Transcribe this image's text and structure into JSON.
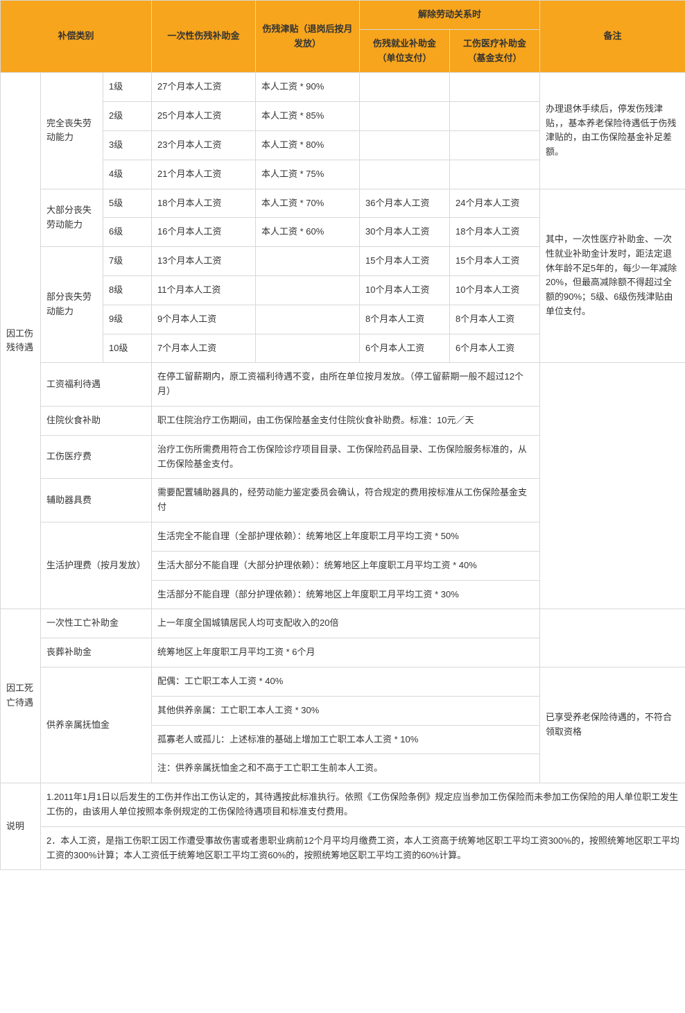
{
  "header": {
    "category": "补偿类别",
    "lump_sum": "一次性伤残补助金",
    "allowance": "伤残津贴（退岗后按月发放）",
    "termination": "解除劳动关系时",
    "emp_subsidy": "伤残就业补助金（单位支付）",
    "med_subsidy": "工伤医疗补助金（基金支付）",
    "remark": "备注"
  },
  "section1": {
    "title": "因工伤残待遇",
    "group1": {
      "label": "完全丧失劳动能力",
      "rows": [
        {
          "lv": "1级",
          "sum": "27个月本人工资",
          "allow": "本人工资 * 90%"
        },
        {
          "lv": "2级",
          "sum": "25个月本人工资",
          "allow": "本人工资 * 85%"
        },
        {
          "lv": "3级",
          "sum": "23个月本人工资",
          "allow": "本人工资 * 80%"
        },
        {
          "lv": "4级",
          "sum": "21个月本人工资",
          "allow": "本人工资 * 75%"
        }
      ],
      "remark": "办理退休手续后，停发伤残津贴，，基本养老保险待遇低于伤残津贴的，由工伤保险基金补足差额。"
    },
    "group2": {
      "label": "大部分丧失劳动能力",
      "rows": [
        {
          "lv": "5级",
          "sum": "18个月本人工资",
          "allow": "本人工资 * 70%",
          "emp": "36个月本人工资",
          "med": "24个月本人工资"
        },
        {
          "lv": "6级",
          "sum": "16个月本人工资",
          "allow": "本人工资 * 60%",
          "emp": "30个月本人工资",
          "med": "18个月本人工资"
        }
      ]
    },
    "group3": {
      "label": "部分丧失劳动能力",
      "rows": [
        {
          "lv": "7级",
          "sum": "13个月本人工资",
          "allow": "",
          "emp": "15个月本人工资",
          "med": "15个月本人工资"
        },
        {
          "lv": "8级",
          "sum": "11个月本人工资",
          "allow": "",
          "emp": "10个月本人工资",
          "med": "10个月本人工资"
        },
        {
          "lv": "9级",
          "sum": "9个月本人工资",
          "allow": "",
          "emp": "8个月本人工资",
          "med": "8个月本人工资"
        },
        {
          "lv": "10级",
          "sum": "7个月本人工资",
          "allow": "",
          "emp": "6个月本人工资",
          "med": "6个月本人工资"
        }
      ],
      "remark": "其中，一次性医疗补助金、一次性就业补助金计发时，距法定退休年龄不足5年的，每少一年减除20%，但最高减除额不得超过全额的90%；5级、6级伤残津贴由单位支付。"
    },
    "items": [
      {
        "label": "工资福利待遇",
        "text": "在停工留薪期内，原工资福利待遇不变，由所在单位按月发放。（停工留薪期一般不超过12个月）"
      },
      {
        "label": "住院伙食补助",
        "text": "职工住院治疗工伤期间，由工伤保险基金支付住院伙食补助费。标准：10元／天"
      },
      {
        "label": "工伤医疗费",
        "text": "治疗工伤所需费用符合工伤保险诊疗项目目录、工伤保险药品目录、工伤保险服务标准的，从工伤保险基金支付。"
      },
      {
        "label": "辅助器具费",
        "text": "需要配置辅助器具的，经劳动能力鉴定委员会确认，符合规定的费用按标准从工伤保险基金支付"
      }
    ],
    "care": {
      "label": "生活护理费（按月发放）",
      "rows": [
        "生活完全不能自理（全部护理依赖）：统筹地区上年度职工月平均工资 * 50%",
        "生活大部分不能自理（大部分护理依赖）：统筹地区上年度职工月平均工资 * 40%",
        "生活部分不能自理（部分护理依赖）：统筹地区上年度职工月平均工资 * 30%"
      ]
    }
  },
  "section2": {
    "title": "因工死亡待遇",
    "rows": [
      {
        "label": "一次性工亡补助金",
        "text": "上一年度全国城镇居民人均可支配收入的20倍"
      },
      {
        "label": "丧葬补助金",
        "text": "统筹地区上年度职工月平均工资 * 6个月"
      }
    ],
    "dep": {
      "label": "供养亲属抚恤金",
      "rows": [
        "配偶：工亡职工本人工资 * 40%",
        "其他供养亲属：工亡职工本人工资 * 30%",
        "孤寡老人或孤儿：上述标准的基础上增加工亡职工本人工资 * 10%",
        "注：供养亲属抚恤金之和不高于工亡职工生前本人工资。"
      ],
      "remark": "已享受养老保险待遇的，不符合领取资格"
    }
  },
  "notes": {
    "label": "说明",
    "n1": "1.2011年1月1日以后发生的工伤并作出工伤认定的，其待遇按此标准执行。依照《工伤保险条例》规定应当参加工伤保险而未参加工伤保险的用人单位职工发生工伤的，由该用人单位按照本条例规定的工伤保险待遇项目和标准支付费用。",
    "n2": "2．本人工资，是指工伤职工因工作遭受事故伤害或者患职业病前12个月平均月缴费工资，本人工资高于统筹地区职工平均工资300%的，按照统筹地区职工平均工资的300%计算；本人工资低于统筹地区职工平均工资60%的，按照统筹地区职工平均工资的60%计算。"
  },
  "colors": {
    "header_bg": "#f7a51c",
    "border": "#d8d8d8",
    "text": "#333333"
  }
}
